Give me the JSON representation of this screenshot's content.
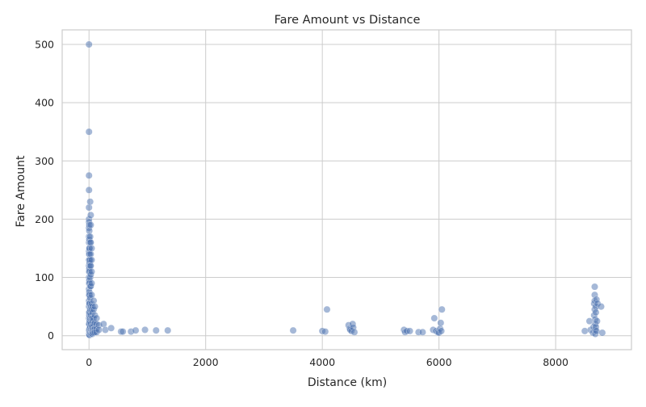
{
  "chart_data": {
    "type": "scatter",
    "title": "Fare Amount vs Distance",
    "xlabel": "Distance (km)",
    "ylabel": "Fare Amount",
    "xlim": [
      -460,
      9300
    ],
    "ylim": [
      -24,
      525
    ],
    "xticks": [
      0,
      2000,
      4000,
      6000,
      8000
    ],
    "yticks": [
      0,
      100,
      200,
      300,
      400,
      500
    ],
    "grid": true,
    "point_color": "#4c72b0",
    "series": [
      {
        "x": [
          0,
          0,
          0,
          0,
          0,
          0,
          0,
          0,
          0,
          0,
          0,
          0,
          0,
          0,
          0,
          0,
          0,
          0,
          0,
          0,
          0,
          0,
          0,
          0,
          0,
          0,
          5,
          5,
          5,
          5,
          5,
          5,
          5,
          5,
          5,
          5,
          5,
          5,
          5,
          10,
          10,
          10,
          10,
          10,
          10,
          10,
          10,
          10,
          10,
          10,
          10,
          20,
          20,
          20,
          20,
          20,
          20,
          20,
          20,
          20,
          20,
          20,
          20,
          30,
          30,
          30,
          30,
          30,
          30,
          30,
          30,
          30,
          30,
          30,
          30,
          45,
          45,
          45,
          45,
          45,
          45,
          45,
          45,
          45,
          45,
          45,
          60,
          60,
          60,
          60,
          60,
          60,
          60,
          60,
          80,
          80,
          80,
          80,
          80,
          80,
          100,
          100,
          100,
          100,
          100,
          130,
          130,
          130,
          130,
          170,
          170,
          250,
          280,
          380,
          550,
          580,
          720,
          800,
          960,
          1150,
          1350,
          3500,
          4000,
          4050,
          4080,
          4450,
          4470,
          4480,
          4500,
          4520,
          4530,
          4550,
          5400,
          5420,
          5450,
          5500,
          5650,
          5720,
          5900,
          5920,
          5950,
          5980,
          6000,
          6020,
          6030,
          6040,
          6050,
          8500,
          8580,
          8600,
          8640,
          8650,
          8660,
          8660,
          8670,
          8670,
          8670,
          8670,
          8680,
          8680,
          8680,
          8680,
          8690,
          8690,
          8690,
          8700,
          8700,
          8710,
          8720,
          8780,
          8800
        ],
        "y": [
          500,
          350,
          275,
          250,
          220,
          200,
          195,
          185,
          170,
          160,
          145,
          140,
          130,
          120,
          110,
          100,
          90,
          80,
          70,
          60,
          50,
          40,
          30,
          20,
          10,
          3,
          190,
          180,
          165,
          150,
          130,
          115,
          95,
          75,
          55,
          35,
          20,
          8,
          2,
          150,
          140,
          125,
          110,
          90,
          70,
          55,
          40,
          25,
          12,
          6,
          1,
          230,
          170,
          160,
          130,
          120,
          100,
          85,
          65,
          45,
          30,
          15,
          5,
          207,
          190,
          160,
          140,
          120,
          105,
          85,
          50,
          35,
          20,
          10,
          3,
          150,
          130,
          110,
          90,
          70,
          55,
          45,
          30,
          15,
          8,
          4,
          50,
          40,
          30,
          25,
          15,
          10,
          6,
          3,
          60,
          45,
          30,
          20,
          10,
          5,
          50,
          35,
          22,
          12,
          6,
          30,
          20,
          12,
          6,
          18,
          10,
          20,
          10,
          13,
          7,
          7,
          7,
          9,
          10,
          9,
          9,
          9,
          8,
          7,
          45,
          18,
          12,
          10,
          8,
          20,
          14,
          6,
          10,
          6,
          8,
          8,
          6,
          6,
          10,
          30,
          8,
          6,
          5,
          12,
          22,
          8,
          45,
          8,
          25,
          10,
          5,
          15,
          55,
          35,
          84,
          70,
          60,
          45,
          28,
          20,
          10,
          3,
          50,
          40,
          15,
          62,
          8,
          25,
          55,
          50,
          5
        ]
      }
    ]
  }
}
